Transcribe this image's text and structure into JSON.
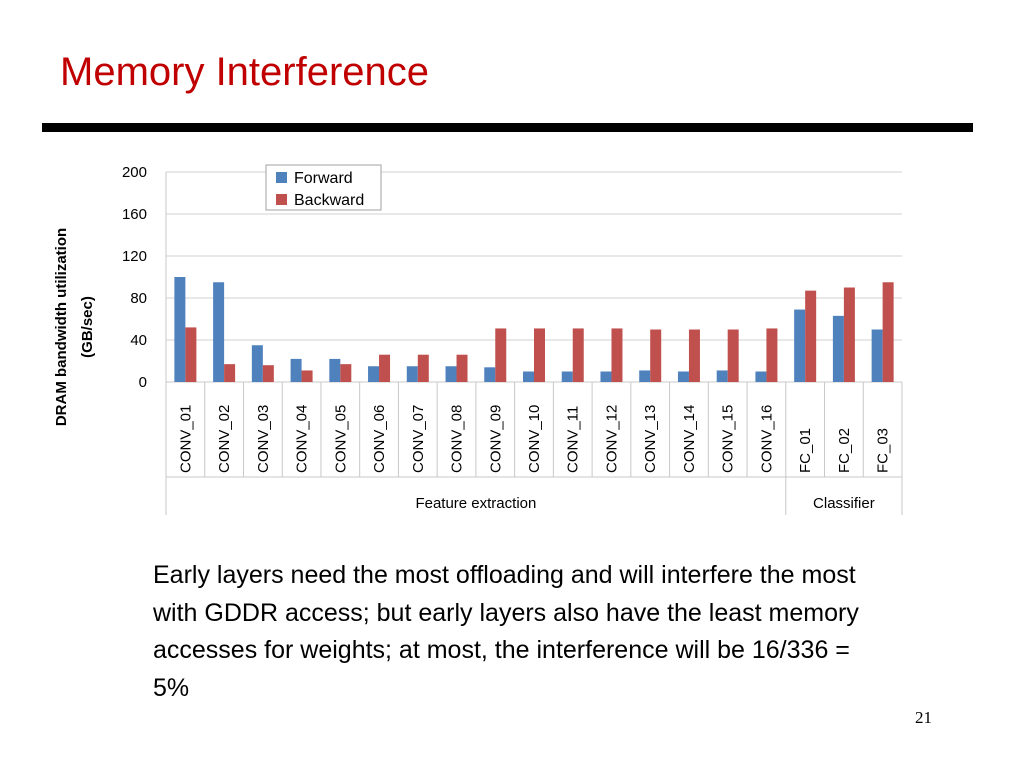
{
  "slide": {
    "title": "Memory Interference",
    "body_text": "Early layers need the most offloading and will interfere the most with GDDR access; but early layers also have the least memory accesses for weights; at most, the interference will be 16/336 = 5%",
    "page_number": "21"
  },
  "chart_data": {
    "type": "bar",
    "title": "",
    "ylabel": [
      "DRAM bandwidth utilization",
      "(GB/sec)"
    ],
    "xlabel": "",
    "ylim": [
      0,
      200
    ],
    "yticks": [
      0,
      40,
      80,
      120,
      160,
      200
    ],
    "grid": true,
    "legend_position": "top-left",
    "categories": [
      "CONV_01",
      "CONV_02",
      "CONV_03",
      "CONV_04",
      "CONV_05",
      "CONV_06",
      "CONV_07",
      "CONV_08",
      "CONV_09",
      "CONV_10",
      "CONV_11",
      "CONV_12",
      "CONV_13",
      "CONV_14",
      "CONV_15",
      "CONV_16",
      "FC_01",
      "FC_02",
      "FC_03"
    ],
    "groups": [
      {
        "label": "Feature extraction",
        "start": 0,
        "end": 15
      },
      {
        "label": "Classifier",
        "start": 16,
        "end": 18
      }
    ],
    "series": [
      {
        "name": "Forward",
        "color": "#4f81bd",
        "values": [
          100,
          95,
          35,
          22,
          22,
          15,
          15,
          15,
          14,
          10,
          10,
          10,
          11,
          10,
          11,
          10,
          69,
          63,
          50
        ]
      },
      {
        "name": "Backward",
        "color": "#c0504d",
        "values": [
          52,
          17,
          16,
          11,
          17,
          26,
          26,
          26,
          51,
          51,
          51,
          51,
          50,
          50,
          50,
          51,
          87,
          90,
          95
        ]
      }
    ]
  }
}
